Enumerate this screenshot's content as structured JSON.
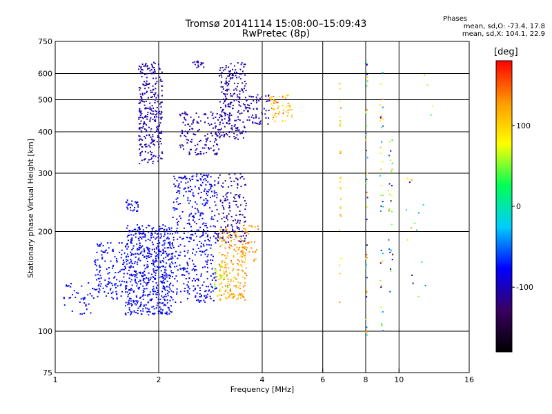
{
  "header": {
    "title_line1": "Tromsø 20141114 15:08:00–15:09:43",
    "title_line2": "RwPretec (8p)",
    "stats_title": "Phases",
    "stats_o": "mean, sd,O: -73.4, 17.8",
    "stats_x": "mean, sd,X: 104.1, 22.9"
  },
  "chart_data": {
    "type": "scatter",
    "xlabel": "Frequency [MHz]",
    "ylabel": "Stationary phase Virtual Height [km]",
    "x_scale": "log",
    "y_scale": "log",
    "xlim": [
      1,
      16
    ],
    "ylim": [
      75,
      750
    ],
    "x_ticks": [
      1,
      2,
      4,
      6,
      8,
      10,
      16
    ],
    "y_ticks": [
      75,
      100,
      200,
      300,
      400,
      500,
      600,
      750
    ],
    "x_grid": [
      2,
      4,
      6,
      8,
      10
    ],
    "y_grid": [
      100,
      200,
      300,
      400,
      500,
      600
    ],
    "colorbar": {
      "unit": "[deg]",
      "min": -180,
      "max": 180,
      "ticks": [
        100,
        0,
        -100
      ],
      "colormap": [
        "#000000",
        "#3a0060",
        "#0000ff",
        "#00ccff",
        "#00ff55",
        "#ffff00",
        "#ff9900",
        "#ff0000"
      ]
    },
    "clusters": [
      {
        "f": [
          1.6,
          2.2
        ],
        "h": [
          112,
          210
        ],
        "phase": [
          -95,
          -65
        ],
        "n": 620
      },
      {
        "f": [
          2.2,
          2.95
        ],
        "h": [
          122,
          300
        ],
        "phase": [
          -95,
          -70
        ],
        "n": 420
      },
      {
        "f": [
          1.3,
          1.6
        ],
        "h": [
          125,
          185
        ],
        "phase": [
          -85,
          -70
        ],
        "n": 130
      },
      {
        "f": [
          1.05,
          1.3
        ],
        "h": [
          112,
          140
        ],
        "phase": [
          -85,
          -70
        ],
        "n": 40
      },
      {
        "f": [
          2.95,
          3.6
        ],
        "h": [
          185,
          300
        ],
        "phase": [
          -120,
          -95
        ],
        "n": 150
      },
      {
        "f": [
          3.0,
          3.6
        ],
        "h": [
          124,
          205
        ],
        "phase": [
          95,
          150
        ],
        "n": 200
      },
      {
        "f": [
          2.9,
          3.2
        ],
        "h": [
          125,
          160
        ],
        "phase": [
          40,
          90
        ],
        "n": 30
      },
      {
        "f": [
          3.5,
          3.9
        ],
        "h": [
          160,
          210
        ],
        "phase": [
          110,
          150
        ],
        "n": 35
      },
      {
        "f": [
          1.6,
          1.75
        ],
        "h": [
          230,
          250
        ],
        "phase": [
          -90,
          -75
        ],
        "n": 25
      },
      {
        "f": [
          1.75,
          2.05
        ],
        "h": [
          320,
          650
        ],
        "phase": [
          -115,
          -95
        ],
        "n": 300
      },
      {
        "f": [
          2.3,
          3.0
        ],
        "h": [
          340,
          460
        ],
        "phase": [
          -115,
          -95
        ],
        "n": 140
      },
      {
        "f": [
          3.0,
          3.6
        ],
        "h": [
          380,
          650
        ],
        "phase": [
          -118,
          -95
        ],
        "n": 230
      },
      {
        "f": [
          3.6,
          4.2
        ],
        "h": [
          420,
          520
        ],
        "phase": [
          -115,
          -95
        ],
        "n": 60
      },
      {
        "f": [
          4.2,
          4.9
        ],
        "h": [
          430,
          520
        ],
        "phase": [
          80,
          150
        ],
        "n": 55
      },
      {
        "f": [
          2.5,
          2.75
        ],
        "h": [
          625,
          655
        ],
        "phase": [
          -110,
          -95
        ],
        "n": 16
      },
      {
        "f": [
          6.7,
          6.8
        ],
        "h": [
          120,
          600
        ],
        "phase": [
          60,
          140
        ],
        "n": 28
      },
      {
        "f": [
          8.0,
          8.1
        ],
        "h": [
          90,
          650
        ],
        "phase": [
          -140,
          150
        ],
        "n": 40
      },
      {
        "f": [
          8.8,
          9.0
        ],
        "h": [
          100,
          620
        ],
        "phase": [
          -140,
          150
        ],
        "n": 40
      },
      {
        "f": [
          9.3,
          9.6
        ],
        "h": [
          125,
          380
        ],
        "phase": [
          -140,
          120
        ],
        "n": 30
      },
      {
        "f": [
          10.5,
          12.5
        ],
        "h": [
          120,
          650
        ],
        "phase": [
          -110,
          120
        ],
        "n": 20
      }
    ]
  }
}
